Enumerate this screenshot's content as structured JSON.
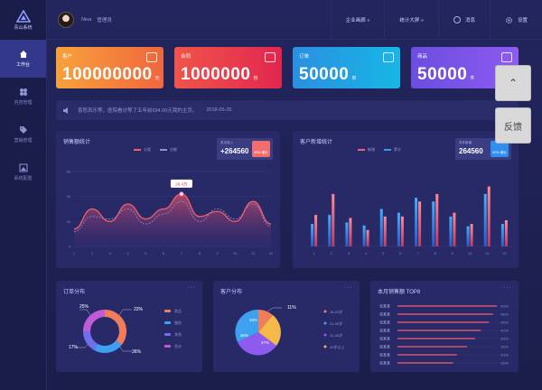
{
  "app": {
    "name": "青山系统"
  },
  "sidebar": {
    "items": [
      {
        "label": "工作台",
        "icon": "home-icon",
        "active": true
      },
      {
        "label": "内容管理",
        "icon": "grid-icon",
        "active": false
      },
      {
        "label": "营销管理",
        "icon": "tag-icon",
        "active": false
      },
      {
        "label": "系统配置",
        "icon": "image-icon",
        "active": false
      }
    ]
  },
  "header": {
    "user_name": "Nina",
    "user_role": "管理员",
    "buttons": [
      {
        "label": "企业画廊 »"
      },
      {
        "label": "统计大屏 »"
      },
      {
        "label": "消息",
        "icon": "message-icon"
      },
      {
        "label": "设置",
        "icon": "gear-icon"
      }
    ]
  },
  "kpis": [
    {
      "label": "客户",
      "value": "100000000",
      "unit": "元",
      "icon": "users-icon",
      "color": "#f28a3c"
    },
    {
      "label": "合同",
      "value": "1000000",
      "unit": "份",
      "icon": "document-icon",
      "color": "#ea3a4d"
    },
    {
      "label": "订单",
      "value": "50000",
      "unit": "单",
      "icon": "clipboard-icon",
      "color": "#1fa3e4"
    },
    {
      "label": "商品",
      "value": "50000",
      "unit": "件",
      "icon": "mail-icon",
      "color": "#7a55ea"
    }
  ],
  "notice": {
    "text": "喜怒哀乐等，医院看诊等了五年前694.00元我的主页。",
    "date": "2018-05-25",
    "icon": "speaker-icon"
  },
  "sales_panel": {
    "title": "销售额统计",
    "legend": [
      "分类",
      "总额"
    ],
    "stat": {
      "label": "本月收入",
      "value": "+264560",
      "tag": "80% 增长"
    },
    "peak_label": "26.4万"
  },
  "customer_panel": {
    "title": "客户新增统计",
    "legend": [
      "新增",
      "累计"
    ],
    "stat": {
      "label": "本年新增",
      "value": "264560",
      "tag": "80% 增长"
    }
  },
  "order_panel": {
    "title": "订单分布",
    "legend": [
      "商品",
      "服务",
      "其他",
      "合计"
    ],
    "pct_labels": [
      "25%",
      "22%",
      "17%",
      "36%"
    ]
  },
  "cust_dist_panel": {
    "title": "客户分布",
    "pct_labels": [
      "11%",
      "33%",
      "30%",
      "27%"
    ],
    "legend": [
      "18-20岁",
      "21-30岁",
      "31-40岁",
      "40岁以上"
    ]
  },
  "top_panel": {
    "title": "本月销售额 TOP8",
    "rows": [
      {
        "name": "张某某",
        "value": "5000"
      },
      {
        "name": "张某某",
        "value": "4800"
      },
      {
        "name": "张某某",
        "value": "4600"
      },
      {
        "name": "张某某",
        "value": "4200"
      },
      {
        "name": "张某某",
        "value": "3900"
      },
      {
        "name": "张某某",
        "value": "3500"
      },
      {
        "name": "张某某",
        "value": "3000"
      },
      {
        "name": "张某某",
        "value": "2800"
      }
    ]
  },
  "float_buttons": [
    {
      "label": "⌃"
    },
    {
      "label": "反馈"
    }
  ],
  "chart_data": [
    {
      "type": "area",
      "title": "销售额统计",
      "x": [
        1,
        2,
        3,
        4,
        5,
        6,
        7,
        8,
        9,
        10,
        11,
        12
      ],
      "yticks": [
        0,
        20,
        40,
        60
      ],
      "ylim": [
        0,
        60
      ],
      "series": [
        {
          "name": "分类",
          "values": [
            12,
            24,
            22,
            30,
            18,
            26,
            36,
            20,
            30,
            22,
            34,
            16
          ]
        },
        {
          "name": "总额",
          "values": [
            14,
            30,
            20,
            34,
            22,
            30,
            42,
            24,
            28,
            20,
            36,
            18
          ]
        }
      ]
    },
    {
      "type": "bar",
      "title": "客户新增统计",
      "categories": [
        "1",
        "2",
        "3",
        "4",
        "5",
        "6",
        "7",
        "8",
        "9",
        "10",
        "11",
        "12"
      ],
      "ylim": [
        0,
        100
      ],
      "series": [
        {
          "name": "新增",
          "values": [
            30,
            42,
            32,
            28,
            50,
            45,
            65,
            60,
            40,
            27,
            70,
            30
          ]
        },
        {
          "name": "累计",
          "values": [
            42,
            70,
            38,
            22,
            40,
            40,
            60,
            70,
            45,
            30,
            80,
            35
          ]
        }
      ]
    }
  ]
}
